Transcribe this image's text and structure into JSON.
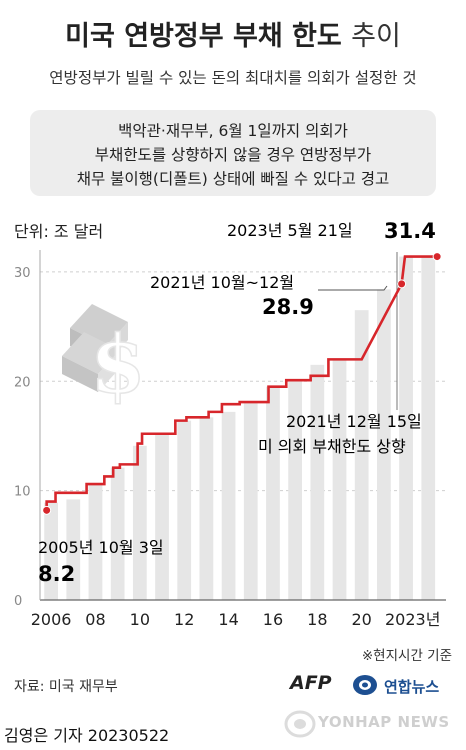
{
  "header": {
    "title_main": "미국 연방정부 부채 한도",
    "title_light": "추이",
    "subtitle": "연방정부가 빌릴 수 있는 돈의 최대치를 의회가 설정한 것"
  },
  "callout": {
    "lines": [
      "백악관·재무부, 6월 1일까지 의회가",
      "부채한도를 상향하지 않을 경우 연방정부가",
      "채무 불이행(디폴트) 상태에 빠질 수 있다고 경고"
    ]
  },
  "unit_label": "단위: 조 달러",
  "chart_data": {
    "type": "line",
    "step": true,
    "x_tick_labels": [
      "2006",
      "08",
      "10",
      "12",
      "14",
      "16",
      "18",
      "20",
      "2023년"
    ],
    "x_tick_years": [
      2006,
      2008,
      2010,
      2012,
      2014,
      2016,
      2018,
      2020,
      2022.3
    ],
    "y_ticks": [
      0,
      10,
      20,
      30
    ],
    "ylim": [
      0,
      32
    ],
    "xlim": [
      2005.5,
      2023.8
    ],
    "grid": true,
    "colors": {
      "line": "#d7262b",
      "bar": "#e6e6e6",
      "grid": "#cfcfcf"
    },
    "background_bars": [
      {
        "x": 2006,
        "y": 8.9
      },
      {
        "x": 2007,
        "y": 9.2
      },
      {
        "x": 2008,
        "y": 10.6
      },
      {
        "x": 2009,
        "y": 12.1
      },
      {
        "x": 2010,
        "y": 14.1
      },
      {
        "x": 2011,
        "y": 15.2
      },
      {
        "x": 2012,
        "y": 16.4
      },
      {
        "x": 2013,
        "y": 16.7
      },
      {
        "x": 2014,
        "y": 17.2
      },
      {
        "x": 2015,
        "y": 18.1
      },
      {
        "x": 2016,
        "y": 19.5
      },
      {
        "x": 2017,
        "y": 20.1
      },
      {
        "x": 2018,
        "y": 21.5
      },
      {
        "x": 2019,
        "y": 22.1
      },
      {
        "x": 2020,
        "y": 26.5
      },
      {
        "x": 2021,
        "y": 28.4
      },
      {
        "x": 2022,
        "y": 31.4
      },
      {
        "x": 2023,
        "y": 31.4
      }
    ],
    "points": [
      {
        "x": 2005.8,
        "y": 8.2
      },
      {
        "x": 2006.2,
        "y": 9.0
      },
      {
        "x": 2007.6,
        "y": 9.8
      },
      {
        "x": 2008.4,
        "y": 10.6
      },
      {
        "x": 2008.8,
        "y": 11.3
      },
      {
        "x": 2009.1,
        "y": 12.1
      },
      {
        "x": 2009.9,
        "y": 12.4
      },
      {
        "x": 2010.1,
        "y": 14.3
      },
      {
        "x": 2011.6,
        "y": 15.2
      },
      {
        "x": 2012.1,
        "y": 16.4
      },
      {
        "x": 2013.1,
        "y": 16.7
      },
      {
        "x": 2013.7,
        "y": 17.2
      },
      {
        "x": 2014.5,
        "y": 17.9
      },
      {
        "x": 2015.8,
        "y": 18.1
      },
      {
        "x": 2016.6,
        "y": 19.5
      },
      {
        "x": 2017.7,
        "y": 20.1
      },
      {
        "x": 2018.5,
        "y": 20.5
      },
      {
        "x": 2019.3,
        "y": 22.0
      },
      {
        "x": 2020.0,
        "y": 22.0
      },
      {
        "x": 2021.8,
        "y": 28.9
      },
      {
        "x": 2021.95,
        "y": 31.4
      },
      {
        "x": 2023.4,
        "y": 31.4
      }
    ],
    "markers": [
      {
        "x": 2005.8,
        "y": 8.2
      },
      {
        "x": 2021.8,
        "y": 28.9
      },
      {
        "x": 2023.4,
        "y": 31.4
      }
    ],
    "annotations": {
      "start_label": "2005년 10월 3일",
      "start_value": "8.2",
      "mid_label": "2021년 10월~12월",
      "mid_value": "28.9",
      "latest_label": "2023년 5월 21일",
      "latest_value": "31.4",
      "event_line1": "2021년 12월 15일",
      "event_line2": "미 의회 부채한도 상향"
    }
  },
  "footer": {
    "note": "※현지시간 기준",
    "source": "자료: 미국 재무부",
    "afp": "AFP",
    "yonhap": "연합뉴스",
    "reporter": "김영은 기자  20230522",
    "watermark": "YONHAP NEWS"
  }
}
